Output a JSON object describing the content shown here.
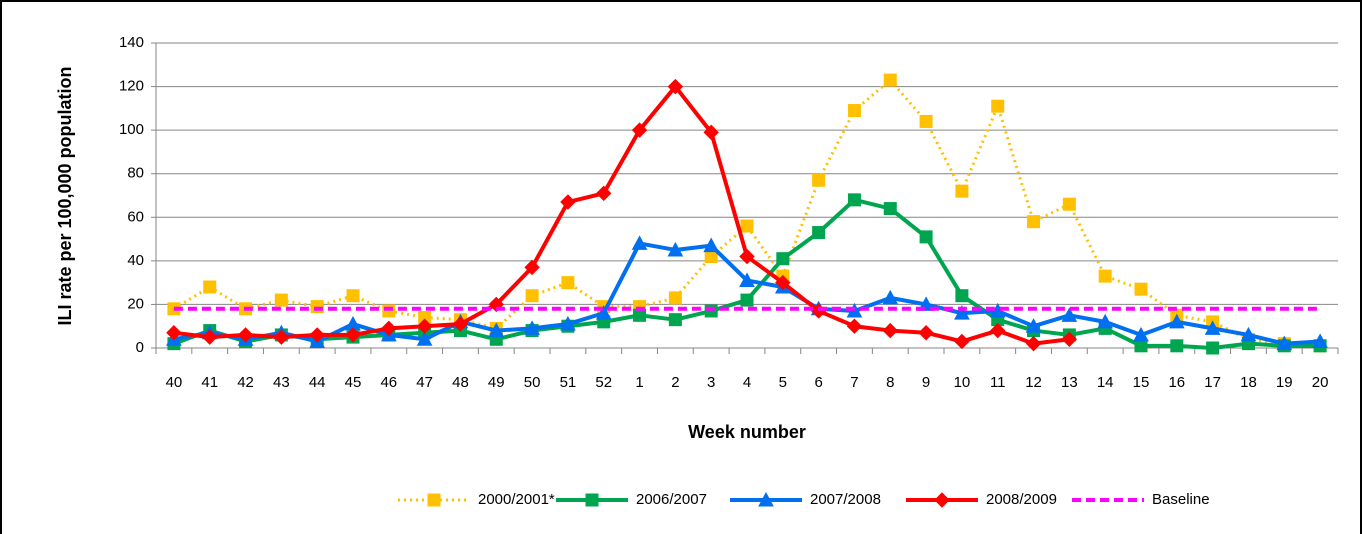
{
  "chart_data": {
    "type": "line",
    "ylabel": "ILI rate per 100,000 population",
    "xlabel": "Week number",
    "categories": [
      "40",
      "41",
      "42",
      "43",
      "44",
      "45",
      "46",
      "47",
      "48",
      "49",
      "50",
      "51",
      "52",
      "1",
      "2",
      "3",
      "4",
      "5",
      "6",
      "7",
      "8",
      "9",
      "10",
      "11",
      "12",
      "13",
      "14",
      "15",
      "16",
      "17",
      "18",
      "19",
      "20"
    ],
    "series": [
      {
        "name": "2000/2001*",
        "color": "#ffc000",
        "style": "dotted",
        "marker": "square",
        "values": [
          18,
          28,
          18,
          22,
          19,
          24,
          17,
          14,
          13,
          9,
          24,
          30,
          19,
          19,
          23,
          42,
          56,
          33,
          77,
          109,
          123,
          104,
          72,
          111,
          58,
          66,
          33,
          27,
          15,
          12,
          4,
          2,
          1
        ]
      },
      {
        "name": "2006/2007",
        "color": "#00a550",
        "style": "solid",
        "marker": "square",
        "values": [
          2,
          8,
          3,
          6,
          4,
          5,
          6,
          7,
          8,
          4,
          8,
          10,
          12,
          15,
          13,
          17,
          22,
          41,
          53,
          68,
          64,
          51,
          24,
          13,
          8,
          6,
          9,
          1,
          1,
          0,
          2,
          1,
          1
        ]
      },
      {
        "name": "2007/2008",
        "color": "#0070f0",
        "style": "solid",
        "marker": "triangle",
        "values": [
          4,
          7,
          4,
          7,
          3,
          11,
          6,
          4,
          12,
          8,
          9,
          11,
          16,
          48,
          45,
          47,
          31,
          28,
          18,
          17,
          23,
          20,
          16,
          17,
          10,
          15,
          12,
          6,
          12,
          9,
          6,
          2,
          3
        ]
      },
      {
        "name": "2008/2009",
        "color": "#ff0000",
        "style": "solid",
        "marker": "diamond",
        "values": [
          7,
          5,
          6,
          5,
          6,
          6,
          9,
          10,
          11,
          20,
          37,
          67,
          71,
          100,
          120,
          99,
          42,
          30,
          17,
          10,
          8,
          7,
          3,
          8,
          2,
          4,
          null,
          null,
          null,
          null,
          null,
          null,
          null
        ]
      },
      {
        "name": "Baseline",
        "color": "#ff00ff",
        "style": "dashed",
        "marker": "none",
        "values": [
          18,
          18,
          18,
          18,
          18,
          18,
          18,
          18,
          18,
          18,
          18,
          18,
          18,
          18,
          18,
          18,
          18,
          18,
          18,
          18,
          18,
          18,
          18,
          18,
          18,
          18,
          18,
          18,
          18,
          18,
          18,
          18,
          18
        ]
      }
    ],
    "ylim": [
      0,
      140
    ],
    "yticks": [
      0,
      20,
      40,
      60,
      80,
      100,
      120,
      140
    ],
    "grid": true
  }
}
